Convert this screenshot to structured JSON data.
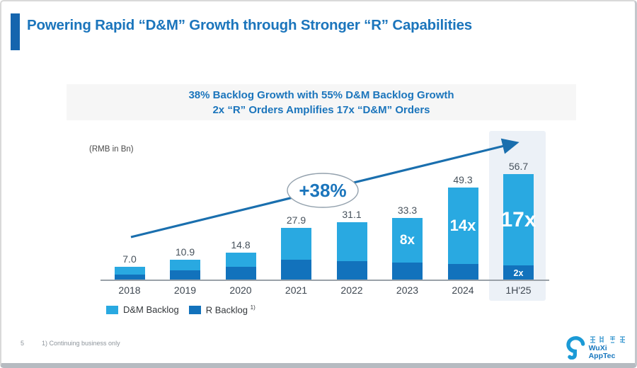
{
  "slide": {
    "page_number": "5",
    "title": "Powering Rapid “D&M” Growth through Stronger “R” Capabilities",
    "key_message_line1": "38%  Backlog Growth with 55%  D&M Backlog Growth",
    "key_message_line2": "2x “R” Orders Amplifies 17x “D&M” Orders",
    "footnote": "1)  Continuing business only"
  },
  "chart_data": {
    "type": "bar",
    "stacked": true,
    "unit_label": "(RMB in Bn)",
    "categories": [
      "2018",
      "2019",
      "2020",
      "2021",
      "2022",
      "2023",
      "2024",
      "1H'25"
    ],
    "totals_bn": [
      7.0,
      10.9,
      14.8,
      27.9,
      31.1,
      33.3,
      49.3,
      56.7
    ],
    "total_labels": [
      "7.0",
      "10.9",
      "14.8",
      "27.9",
      "31.1",
      "33.3",
      "49.3",
      "56.7"
    ],
    "series": [
      {
        "name": "D&M Backlog",
        "color": "#29a9e1",
        "values_est_bn": [
          4.0,
          5.6,
          7.6,
          17.0,
          20.9,
          24.0,
          40.8,
          48.6
        ]
      },
      {
        "name": "R Backlog",
        "color": "#1272bc",
        "values_est_bn": [
          3.0,
          5.3,
          7.2,
          10.9,
          10.2,
          9.3,
          8.5,
          8.1
        ]
      }
    ],
    "annotations": {
      "2023": {
        "dm": "8x"
      },
      "2024": {
        "dm": "14x"
      },
      "1H'25": {
        "dm": "17x",
        "r": "2x"
      }
    },
    "growth_callout": "+38%",
    "highlighted_category": "1H'25",
    "legend": [
      {
        "label": "D&M Backlog",
        "superscript": ""
      },
      {
        "label": "R Backlog",
        "superscript": "1)"
      }
    ],
    "xlabel": "",
    "ylabel": "RMB in Bn",
    "grid": false,
    "legend_position": "bottom-left"
  },
  "logo": {
    "chinese_name": "药明康德",
    "latin_name": "WuXi AppTec"
  },
  "colors": {
    "title_blue": "#1b75bc",
    "dm_bar": "#29a9e1",
    "r_bar": "#1272bc",
    "arrow": "#1a6fae",
    "highlight_column": "#ecf1f7",
    "key_box_bg": "#f6f6f6",
    "label_gray": "#47525c"
  }
}
